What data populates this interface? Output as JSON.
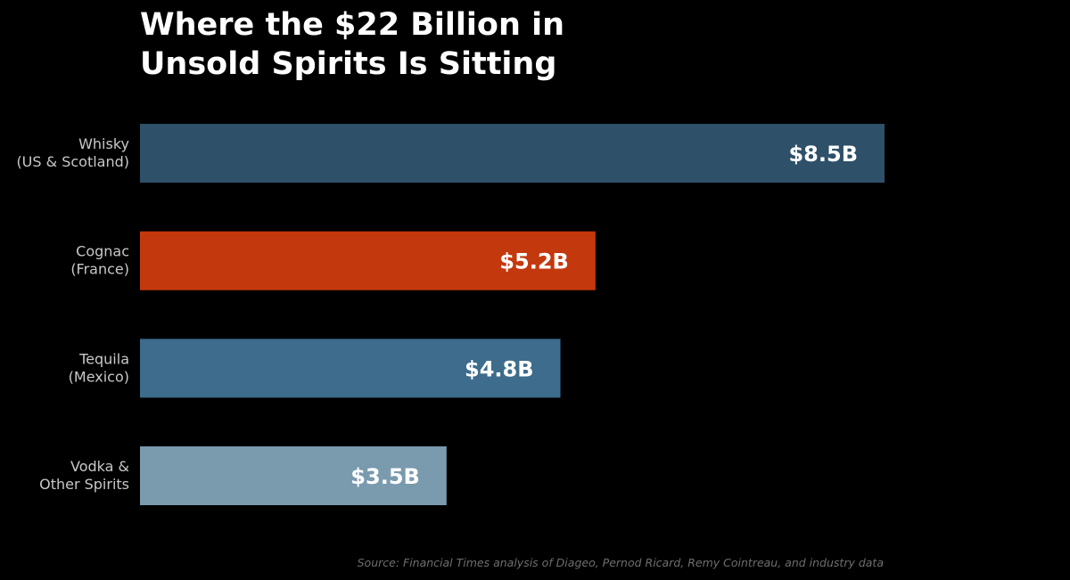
{
  "chart_data": {
    "type": "bar",
    "orientation": "horizontal",
    "title": "Where the $22 Billion in\nUnsold Spirits Is Sitting",
    "categories": [
      [
        "Whisky",
        "(US & Scotland)"
      ],
      [
        "Cognac",
        "(France)"
      ],
      [
        "Tequila",
        "(Mexico)"
      ],
      [
        "Vodka &",
        "Other Spirits"
      ]
    ],
    "values": [
      8.5,
      5.2,
      4.8,
      3.5
    ],
    "value_labels": [
      "$8.5B",
      "$5.2B",
      "$4.8B",
      "$3.5B"
    ],
    "colors": [
      "#2e5069",
      "#c4380d",
      "#3d6c8c",
      "#7a9aae"
    ],
    "unit": "$B",
    "xlim": [
      0,
      8.5
    ],
    "grid": false,
    "xlabel": "",
    "ylabel": "",
    "source": "Source: Financial Times analysis of Diageo, Pernod Ricard, Remy Cointreau, and industry data"
  }
}
